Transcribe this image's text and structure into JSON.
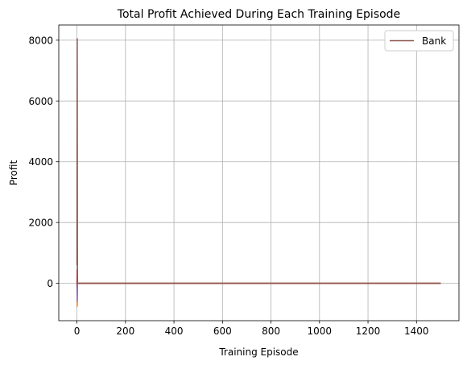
{
  "chart_data": {
    "type": "line",
    "title": "Total Profit Achieved During Each Training Episode",
    "xlabel": "Training Episode",
    "ylabel": "Profit",
    "xlim": [
      -75,
      1575
    ],
    "ylim": [
      -1230,
      8500
    ],
    "xticks": [
      0,
      200,
      400,
      600,
      800,
      1000,
      1200,
      1400
    ],
    "yticks": [
      0,
      2000,
      4000,
      6000,
      8000
    ],
    "grid": true,
    "legend_position": "top-right",
    "series": [
      {
        "name": "",
        "color": "#ff7f0e",
        "x": [
          0,
          1,
          2,
          1500
        ],
        "y": [
          0,
          -760,
          0,
          0
        ]
      },
      {
        "name": "",
        "color": "#2ca02c",
        "x": [
          0,
          1,
          2,
          1500
        ],
        "y": [
          0,
          -300,
          0,
          0
        ]
      },
      {
        "name": "",
        "color": "#9467bd",
        "x": [
          0,
          1,
          2,
          1500
        ],
        "y": [
          0,
          -600,
          0,
          0
        ]
      },
      {
        "name": "",
        "color": "#d62728",
        "x": [
          0,
          1,
          2,
          1500
        ],
        "y": [
          0,
          450,
          0,
          0
        ]
      },
      {
        "name": "Bank",
        "color": "#8c564b",
        "x": [
          0,
          1,
          2,
          1500
        ],
        "y": [
          600,
          8050,
          0,
          0
        ]
      }
    ]
  }
}
